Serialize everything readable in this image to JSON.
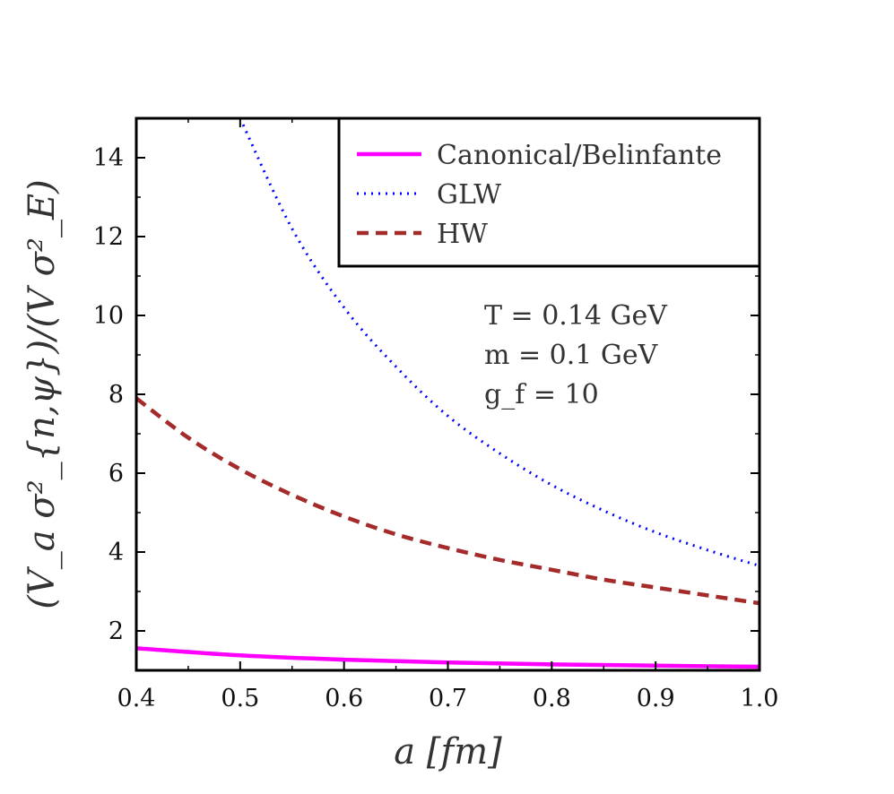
{
  "chart_data": {
    "type": "line",
    "xlabel": "a [fm]",
    "ylabel": "(V_a σ²_{n,ψ})/(V σ²_E)",
    "xlim": [
      0.4,
      1.0
    ],
    "ylim": [
      1.0,
      15.0
    ],
    "xticks": [
      "0.4",
      "0.5",
      "0.6",
      "0.7",
      "0.8",
      "0.9",
      "1.0"
    ],
    "yticks": [
      "2",
      "4",
      "6",
      "8",
      "10",
      "12",
      "14"
    ],
    "legend_position": "top-right",
    "series": [
      {
        "name": "Canonical/Belinfante",
        "color": "#ff00ff",
        "style": "solid",
        "x": [
          0.4,
          0.5,
          0.6,
          0.7,
          0.8,
          0.9,
          1.0
        ],
        "y": [
          1.56,
          1.38,
          1.27,
          1.2,
          1.15,
          1.12,
          1.09
        ]
      },
      {
        "name": "GLW",
        "color": "#0000ff",
        "style": "dotted",
        "x": [
          0.5,
          0.55,
          0.6,
          0.65,
          0.7,
          0.75,
          0.8,
          0.85,
          0.9,
          0.95,
          1.0
        ],
        "y": [
          15.0,
          12.2,
          10.2,
          8.7,
          7.45,
          6.5,
          5.7,
          5.05,
          4.5,
          4.05,
          3.65
        ]
      },
      {
        "name": "HW",
        "color": "#a52a2a",
        "style": "dashed",
        "x": [
          0.4,
          0.45,
          0.5,
          0.55,
          0.6,
          0.65,
          0.7,
          0.75,
          0.8,
          0.85,
          0.9,
          0.95,
          1.0
        ],
        "y": [
          7.9,
          6.9,
          6.1,
          5.45,
          4.9,
          4.45,
          4.1,
          3.8,
          3.55,
          3.3,
          3.1,
          2.9,
          2.7
        ]
      }
    ],
    "annotations": [
      "T = 0.14 GeV",
      "m = 0.1 GeV",
      "g_f = 10"
    ]
  }
}
